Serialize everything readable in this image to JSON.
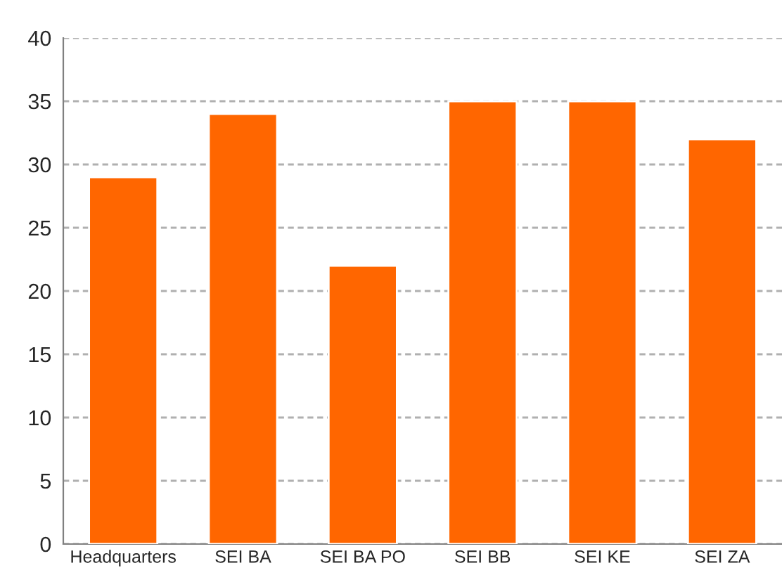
{
  "chart_data": {
    "type": "bar",
    "categories": [
      "Headquarters",
      "SEI BA",
      "SEI BA PO",
      "SEI BB",
      "SEI KE",
      "SEI ZA"
    ],
    "values": [
      29,
      34,
      22,
      35,
      35,
      32
    ],
    "color": "#ff6600",
    "ylim": [
      0,
      40
    ],
    "yticks": [
      0,
      5,
      10,
      15,
      20,
      25,
      30,
      35,
      40
    ],
    "grid": "y"
  }
}
